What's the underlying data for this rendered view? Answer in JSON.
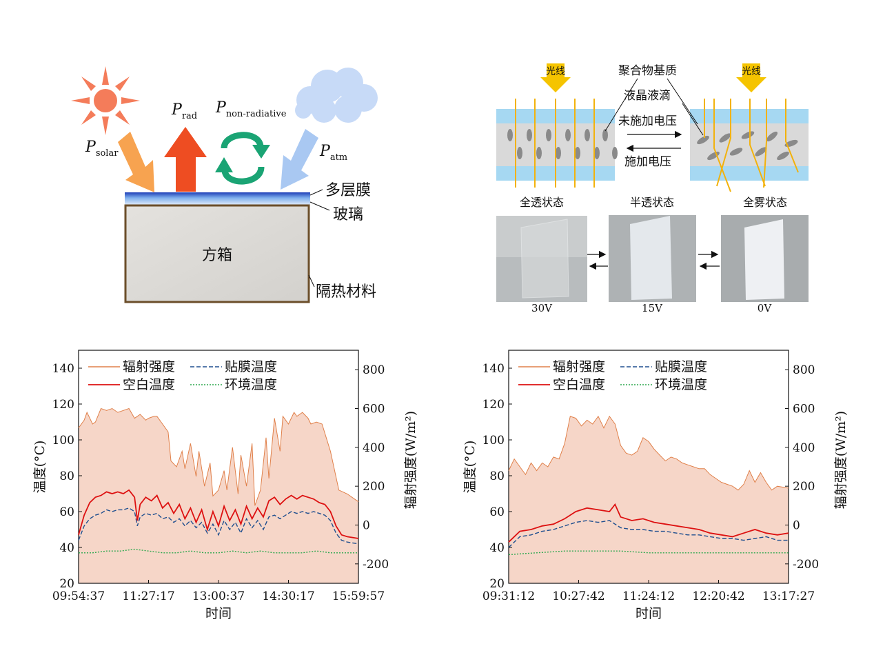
{
  "panel_a": {
    "p_solar": {
      "main": "P",
      "sub": "solar"
    },
    "p_rad": {
      "main": "P",
      "sub": "rad"
    },
    "p_nonrad": {
      "main": "P",
      "sub": "non-radiative"
    },
    "p_atm": {
      "main": "P",
      "sub": "atm"
    },
    "label_film": "多层膜",
    "label_glass": "玻璃",
    "label_box": "方箱",
    "label_insulation": "隔热材料",
    "colors": {
      "sun": "#f47c5a",
      "solar_arrow": "#f7a350",
      "rad_arrow": "#ee4d22",
      "nonrad_arrow": "#1aa474",
      "atm_arrow": "#a9c8f2",
      "cloud": "#c7daf7",
      "box_frame": "#6b4e2a",
      "box_fill": "#dedcd8",
      "film": "#3a6fd8"
    }
  },
  "panel_b": {
    "light_badge": "光线",
    "label_polymer": "聚合物基质",
    "label_droplet": "液晶液滴",
    "label_no_voltage": "未施加电压",
    "label_voltage": "施加电压",
    "state_full_transparent": "全透状态",
    "state_semi_transparent": "半透状态",
    "state_full_fog": "全雾状态",
    "voltages": [
      "30V",
      "15V",
      "0V"
    ],
    "colors": {
      "substrate": "#a6d8f2",
      "matrix": "#d9d9d9",
      "droplet": "#8a8a8a",
      "ray": "#f2b20c"
    }
  },
  "chart_data": [
    {
      "type": "line",
      "xlabel": "时间",
      "ylabel": "温度(°C)",
      "y2label": "辐射强度(W/m²)",
      "ylim": [
        20,
        150
      ],
      "y2lim": [
        -300,
        900
      ],
      "yticks": [
        "20",
        "40",
        "60",
        "80",
        "100",
        "120",
        "140"
      ],
      "y2ticks": [
        "-200",
        "0",
        "200",
        "400",
        "600",
        "800"
      ],
      "xticks": [
        "09:54:37",
        "11:27:17",
        "13:00:37",
        "14:30:17",
        "15:59:57"
      ],
      "xlim": [
        0,
        1.0
      ],
      "legend_position": "top-left",
      "series": [
        {
          "name": "辐射强度",
          "axis": "right",
          "color": "#e0804a",
          "style": "solid-fill",
          "x": [
            0,
            0.02,
            0.03,
            0.05,
            0.06,
            0.08,
            0.1,
            0.12,
            0.14,
            0.16,
            0.18,
            0.2,
            0.21,
            0.22,
            0.24,
            0.25,
            0.27,
            0.28,
            0.3,
            0.32,
            0.33,
            0.35,
            0.37,
            0.38,
            0.4,
            0.42,
            0.43,
            0.45,
            0.47,
            0.48,
            0.5,
            0.52,
            0.53,
            0.55,
            0.57,
            0.58,
            0.6,
            0.62,
            0.63,
            0.65,
            0.67,
            0.68,
            0.7,
            0.72,
            0.73,
            0.75,
            0.77,
            0.78,
            0.8,
            0.82,
            0.83,
            0.85,
            0.87,
            0.9,
            0.93,
            0.96,
            1.0
          ],
          "values": [
            500,
            540,
            580,
            520,
            530,
            600,
            590,
            600,
            580,
            590,
            600,
            550,
            560,
            570,
            540,
            550,
            560,
            560,
            520,
            480,
            330,
            300,
            380,
            290,
            420,
            250,
            380,
            200,
            320,
            150,
            180,
            280,
            180,
            400,
            160,
            360,
            200,
            420,
            100,
            180,
            450,
            240,
            550,
            380,
            560,
            520,
            580,
            560,
            580,
            550,
            520,
            530,
            520,
            380,
            180,
            160,
            120
          ]
        },
        {
          "name": "贴膜温度",
          "axis": "left",
          "color": "#1f4f8f",
          "style": "dashed",
          "x": [
            0,
            0.02,
            0.04,
            0.06,
            0.08,
            0.1,
            0.12,
            0.14,
            0.16,
            0.18,
            0.2,
            0.21,
            0.22,
            0.24,
            0.26,
            0.28,
            0.3,
            0.32,
            0.34,
            0.36,
            0.38,
            0.4,
            0.42,
            0.44,
            0.46,
            0.48,
            0.5,
            0.52,
            0.54,
            0.56,
            0.58,
            0.6,
            0.62,
            0.64,
            0.66,
            0.68,
            0.7,
            0.72,
            0.74,
            0.76,
            0.78,
            0.8,
            0.82,
            0.84,
            0.86,
            0.88,
            0.9,
            0.92,
            0.94,
            0.96,
            1.0
          ],
          "values": [
            44,
            52,
            56,
            58,
            59,
            61,
            60,
            61,
            61,
            62,
            60,
            52,
            57,
            59,
            58,
            59,
            56,
            57,
            54,
            56,
            52,
            55,
            51,
            54,
            48,
            53,
            47,
            55,
            50,
            54,
            48,
            56,
            51,
            55,
            50,
            57,
            58,
            56,
            58,
            60,
            59,
            60,
            59,
            60,
            59,
            58,
            55,
            48,
            44,
            43,
            42
          ]
        },
        {
          "name": "空白温度",
          "axis": "left",
          "color": "#dd1111",
          "style": "solid",
          "x": [
            0,
            0.02,
            0.04,
            0.06,
            0.08,
            0.1,
            0.12,
            0.14,
            0.16,
            0.18,
            0.2,
            0.21,
            0.22,
            0.24,
            0.26,
            0.28,
            0.3,
            0.32,
            0.34,
            0.36,
            0.38,
            0.4,
            0.42,
            0.44,
            0.46,
            0.48,
            0.5,
            0.52,
            0.54,
            0.56,
            0.58,
            0.6,
            0.62,
            0.64,
            0.66,
            0.68,
            0.7,
            0.72,
            0.74,
            0.76,
            0.78,
            0.8,
            0.82,
            0.84,
            0.86,
            0.88,
            0.9,
            0.92,
            0.94,
            0.96,
            1.0
          ],
          "values": [
            47,
            58,
            65,
            68,
            69,
            71,
            70,
            71,
            70,
            72,
            68,
            55,
            64,
            68,
            66,
            69,
            62,
            65,
            59,
            64,
            56,
            62,
            54,
            61,
            50,
            60,
            52,
            63,
            55,
            61,
            53,
            63,
            56,
            62,
            57,
            66,
            68,
            64,
            67,
            69,
            67,
            69,
            68,
            67,
            65,
            64,
            60,
            52,
            47,
            46,
            45
          ]
        },
        {
          "name": "环境温度",
          "axis": "left",
          "color": "#2fa84f",
          "style": "dotted",
          "x": [
            0,
            0.05,
            0.1,
            0.15,
            0.2,
            0.25,
            0.3,
            0.35,
            0.4,
            0.45,
            0.5,
            0.55,
            0.6,
            0.65,
            0.7,
            0.75,
            0.8,
            0.85,
            0.9,
            0.95,
            1.0
          ],
          "values": [
            37,
            37,
            38,
            38,
            39,
            38,
            37,
            37,
            38,
            37,
            37,
            38,
            37,
            38,
            37,
            37,
            37,
            38,
            37,
            37,
            37
          ]
        }
      ]
    },
    {
      "type": "line",
      "xlabel": "时间",
      "ylabel": "温度(°C)",
      "y2label": "辐射强度(W/m²)",
      "ylim": [
        20,
        150
      ],
      "y2lim": [
        -300,
        900
      ],
      "yticks": [
        "20",
        "40",
        "60",
        "80",
        "100",
        "120",
        "140"
      ],
      "y2ticks": [
        "-200",
        "0",
        "200",
        "400",
        "600",
        "800"
      ],
      "xticks": [
        "09:31:12",
        "10:27:42",
        "11:24:12",
        "12:20:42",
        "13:17:27"
      ],
      "xlim": [
        0,
        1.0
      ],
      "legend_position": "top-left",
      "series": [
        {
          "name": "辐射强度",
          "axis": "right",
          "color": "#e0804a",
          "style": "solid-fill",
          "x": [
            0,
            0.02,
            0.04,
            0.06,
            0.08,
            0.1,
            0.12,
            0.14,
            0.16,
            0.18,
            0.2,
            0.22,
            0.24,
            0.26,
            0.28,
            0.3,
            0.32,
            0.34,
            0.36,
            0.38,
            0.4,
            0.42,
            0.44,
            0.46,
            0.48,
            0.5,
            0.52,
            0.54,
            0.56,
            0.58,
            0.6,
            0.62,
            0.64,
            0.66,
            0.68,
            0.7,
            0.72,
            0.74,
            0.76,
            0.78,
            0.8,
            0.82,
            0.84,
            0.86,
            0.88,
            0.9,
            0.92,
            0.94,
            0.96,
            1.0
          ],
          "values": [
            280,
            340,
            300,
            260,
            320,
            280,
            320,
            300,
            350,
            340,
            420,
            560,
            550,
            510,
            540,
            520,
            560,
            500,
            560,
            520,
            410,
            370,
            360,
            380,
            450,
            430,
            390,
            360,
            330,
            350,
            340,
            320,
            310,
            300,
            290,
            290,
            260,
            240,
            220,
            210,
            200,
            180,
            210,
            280,
            220,
            270,
            220,
            180,
            200,
            190
          ]
        },
        {
          "name": "贴膜温度",
          "axis": "left",
          "color": "#1f4f8f",
          "style": "dashed",
          "x": [
            0,
            0.04,
            0.08,
            0.12,
            0.16,
            0.2,
            0.24,
            0.28,
            0.32,
            0.36,
            0.4,
            0.44,
            0.48,
            0.52,
            0.56,
            0.6,
            0.64,
            0.68,
            0.72,
            0.76,
            0.8,
            0.84,
            0.88,
            0.92,
            0.96,
            1.0
          ],
          "values": [
            40,
            46,
            47,
            49,
            50,
            52,
            54,
            55,
            54,
            55,
            51,
            50,
            50,
            49,
            49,
            48,
            47,
            47,
            46,
            45,
            45,
            44,
            45,
            46,
            44,
            44
          ]
        },
        {
          "name": "空白温度",
          "axis": "left",
          "color": "#dd1111",
          "style": "solid",
          "x": [
            0,
            0.04,
            0.08,
            0.12,
            0.16,
            0.2,
            0.24,
            0.28,
            0.32,
            0.36,
            0.38,
            0.4,
            0.44,
            0.48,
            0.52,
            0.56,
            0.6,
            0.64,
            0.68,
            0.72,
            0.76,
            0.8,
            0.84,
            0.88,
            0.92,
            0.96,
            1.0
          ],
          "values": [
            43,
            49,
            50,
            52,
            53,
            56,
            60,
            62,
            61,
            60,
            64,
            57,
            55,
            56,
            54,
            53,
            52,
            51,
            50,
            48,
            47,
            46,
            48,
            50,
            48,
            47,
            48
          ]
        },
        {
          "name": "环境温度",
          "axis": "left",
          "color": "#2fa84f",
          "style": "dotted",
          "x": [
            0,
            0.1,
            0.2,
            0.3,
            0.4,
            0.5,
            0.6,
            0.7,
            0.8,
            0.9,
            1.0
          ],
          "values": [
            36,
            37,
            38,
            38,
            38,
            37,
            37,
            37,
            37,
            37,
            37
          ]
        }
      ]
    }
  ]
}
